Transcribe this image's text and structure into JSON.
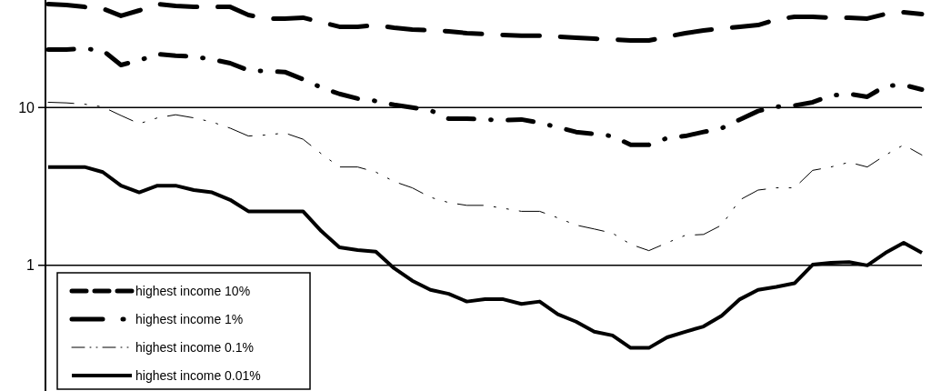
{
  "chart_data": {
    "type": "line",
    "categories": [
      null,
      null,
      null,
      null,
      null,
      null,
      null,
      null,
      null,
      null,
      null,
      null,
      null,
      null,
      null,
      null,
      null,
      null,
      null,
      null,
      null,
      null,
      null,
      null,
      null,
      null,
      null,
      null,
      null,
      null,
      null,
      null,
      null,
      null,
      null,
      null,
      null,
      null,
      null,
      null,
      null,
      null,
      null,
      null,
      null,
      null,
      null,
      null,
      null
    ],
    "series": [
      {
        "name": "highest income 10%",
        "color": "#000000",
        "line_style": "dashed",
        "values": [
          45.2,
          44.6,
          43.4,
          42.3,
          38.1,
          41.2,
          45.2,
          44,
          43.4,
          43.4,
          43.4,
          38.6,
          36.6,
          36.6,
          37.1,
          34.7,
          32.5,
          32.5,
          33.3,
          32,
          31.2,
          30.8,
          30.4,
          29.6,
          29.2,
          28.8,
          28.5,
          28.5,
          28.1,
          27.7,
          27.3,
          27,
          26.6,
          26.6,
          28.1,
          29.6,
          30.8,
          31.6,
          32.5,
          33.3,
          36.1,
          37.6,
          37.6,
          37.1,
          37.1,
          36.6,
          39.1,
          40.1,
          39.1
        ]
      },
      {
        "name": "highest income 1%",
        "color": "#000000",
        "line_style": "dashed",
        "values": [
          23.3,
          23.3,
          23.6,
          23,
          18.6,
          19.9,
          21.8,
          21.3,
          21,
          20.2,
          19.1,
          17.2,
          17,
          16.8,
          15.1,
          13.4,
          12.2,
          11.4,
          11,
          10.4,
          10,
          9.6,
          8.5,
          8.5,
          8.4,
          8.3,
          8.4,
          8,
          7.5,
          7,
          6.8,
          6.6,
          5.8,
          5.8,
          6.4,
          6.6,
          7,
          7.4,
          8.4,
          9.5,
          10.1,
          10.3,
          10.8,
          11.9,
          12.2,
          11.7,
          13.7,
          13.9,
          13
        ]
      },
      {
        "name": "highest income 0.1%",
        "color": "#000000",
        "line_style": "dotted",
        "values": [
          10.8,
          10.7,
          10.5,
          10.1,
          8.9,
          7.9,
          8.6,
          9,
          8.6,
          8.1,
          7.4,
          6.6,
          6.7,
          6.9,
          6.3,
          5.1,
          4.2,
          4.2,
          3.9,
          3.4,
          3.1,
          2.7,
          2.5,
          2.4,
          2.4,
          2.3,
          2.2,
          2.2,
          2,
          1.8,
          1.7,
          1.6,
          1.36,
          1.24,
          1.39,
          1.55,
          1.57,
          1.8,
          2.6,
          3,
          3.1,
          3.1,
          4,
          4.2,
          4.5,
          4.2,
          5,
          5.8,
          5
        ]
      },
      {
        "name": "highest income 0.01%",
        "color": "#000000",
        "line_style": "solid",
        "values": [
          4.2,
          4.2,
          4.2,
          3.9,
          3.2,
          2.9,
          3.2,
          3.2,
          3,
          2.9,
          2.6,
          2.2,
          2.2,
          2.2,
          2.2,
          1.65,
          1.3,
          1.25,
          1.22,
          0.96,
          0.8,
          0.7,
          0.66,
          0.59,
          0.61,
          0.61,
          0.57,
          0.59,
          0.49,
          0.44,
          0.38,
          0.36,
          0.3,
          0.3,
          0.35,
          0.38,
          0.41,
          0.48,
          0.61,
          0.7,
          0.73,
          0.77,
          1.01,
          1.04,
          1.05,
          1,
          1.2,
          1.39,
          1.2
        ]
      }
    ],
    "log": true,
    "ylim": [
      0.16,
      48
    ],
    "yticks": [
      1,
      10
    ],
    "grid": "y",
    "legend": "bottom left"
  }
}
